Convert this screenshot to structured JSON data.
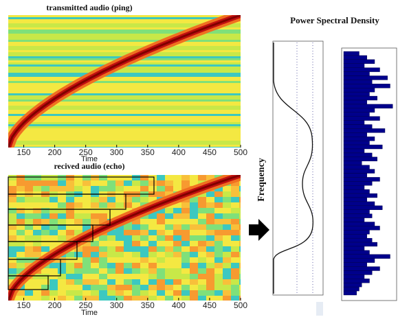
{
  "chart_data": [
    {
      "type": "heatmap",
      "title": "transmitted audio (ping)",
      "x_label": "Time",
      "xlim": [
        125,
        500
      ],
      "xticks": [
        150,
        200,
        250,
        300,
        350,
        400,
        450,
        500
      ]
    },
    {
      "type": "heatmap",
      "title": "recived audio (echo)",
      "x_label": "Time",
      "xlim": [
        125,
        500
      ],
      "xticks": [
        150,
        200,
        250,
        300,
        350,
        400,
        450,
        500
      ]
    },
    {
      "type": "curve",
      "y_label": "Frequency"
    },
    {
      "type": "bar",
      "title": "Power Spectral Density",
      "orientation": "horizontal",
      "xlim": [
        0,
        1
      ],
      "color": "#00008b",
      "values": [
        0.3,
        0.45,
        0.6,
        0.4,
        0.7,
        0.5,
        0.85,
        0.55,
        0.9,
        0.6,
        0.5,
        0.65,
        0.45,
        0.95,
        0.6,
        0.5,
        0.7,
        0.4,
        0.55,
        0.8,
        0.45,
        0.6,
        0.5,
        0.75,
        0.4,
        0.55,
        0.65,
        0.35,
        0.5,
        0.6,
        0.45,
        0.7,
        0.55,
        0.4,
        0.5,
        0.65,
        0.45,
        0.6,
        0.75,
        0.5,
        0.55,
        0.4,
        0.6,
        0.7,
        0.5,
        0.45,
        0.55,
        0.65,
        0.4,
        0.5,
        0.9,
        0.6,
        0.45,
        0.7,
        0.55,
        0.4,
        0.5,
        0.35,
        0.3,
        0.25
      ]
    }
  ]
}
